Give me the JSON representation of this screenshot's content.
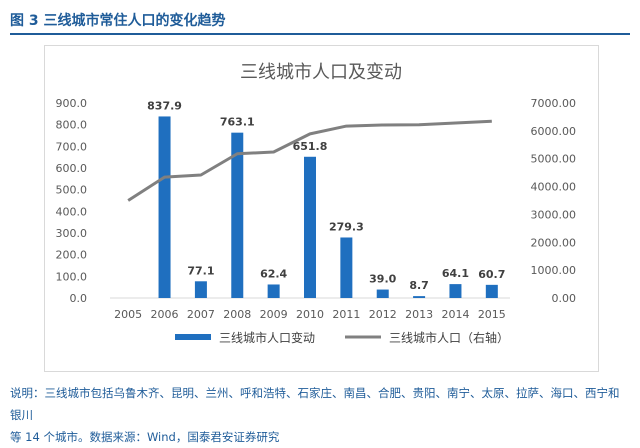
{
  "figure_title": "图 3  三线城市常住人口的变化趋势",
  "note_line1": "说明：三线城市包括乌鲁木齐、昆明、兰州、呼和浩特、石家庄、南昌、合肥、贵阳、南宁、太原、拉萨、海口、西宁和银川",
  "note_line2": "等 14 个城市。数据来源：Wind，国泰君安证券研究",
  "colors": {
    "bar": "#1f6fbf",
    "line": "#808080",
    "accent": "#1f5c99",
    "axis_text": "#595959",
    "gridline": "#d9d9d9"
  },
  "chart_data": {
    "type": "bar",
    "title": "三线城市人口及变动",
    "categories": [
      "2005",
      "2006",
      "2007",
      "2008",
      "2009",
      "2010",
      "2011",
      "2012",
      "2013",
      "2014",
      "2015"
    ],
    "series": [
      {
        "name": "三线城市人口变动",
        "type": "bar",
        "axis": "left",
        "values": [
          null,
          837.9,
          77.1,
          763.1,
          62.4,
          651.8,
          279.3,
          39.0,
          8.7,
          64.1,
          60.7
        ],
        "labels": [
          "",
          "837.9",
          "77.1",
          "763.1",
          "62.4",
          "651.8",
          "279.3",
          "39.0",
          "8.7",
          "64.1",
          "60.7"
        ]
      },
      {
        "name": "三线城市人口（右轴）",
        "type": "line",
        "axis": "right",
        "values": [
          3500,
          4338,
          4415,
          5178,
          5240,
          5892,
          6171,
          6210,
          6219,
          6283,
          6344
        ]
      }
    ],
    "y_left": {
      "range": [
        0,
        900
      ],
      "ticks": [
        0,
        100,
        200,
        300,
        400,
        500,
        600,
        700,
        800,
        900
      ],
      "tick_labels": [
        "0.0",
        "100.0",
        "200.0",
        "300.0",
        "400.0",
        "500.0",
        "600.0",
        "700.0",
        "800.0",
        "900.0"
      ]
    },
    "y_right": {
      "range": [
        0,
        7000
      ],
      "ticks": [
        0,
        1000,
        2000,
        3000,
        4000,
        5000,
        6000,
        7000
      ],
      "tick_labels": [
        "0.00",
        "1000.00",
        "2000.00",
        "3000.00",
        "4000.00",
        "5000.00",
        "6000.00",
        "7000.00"
      ]
    },
    "grid": false,
    "legend_position": "bottom"
  }
}
